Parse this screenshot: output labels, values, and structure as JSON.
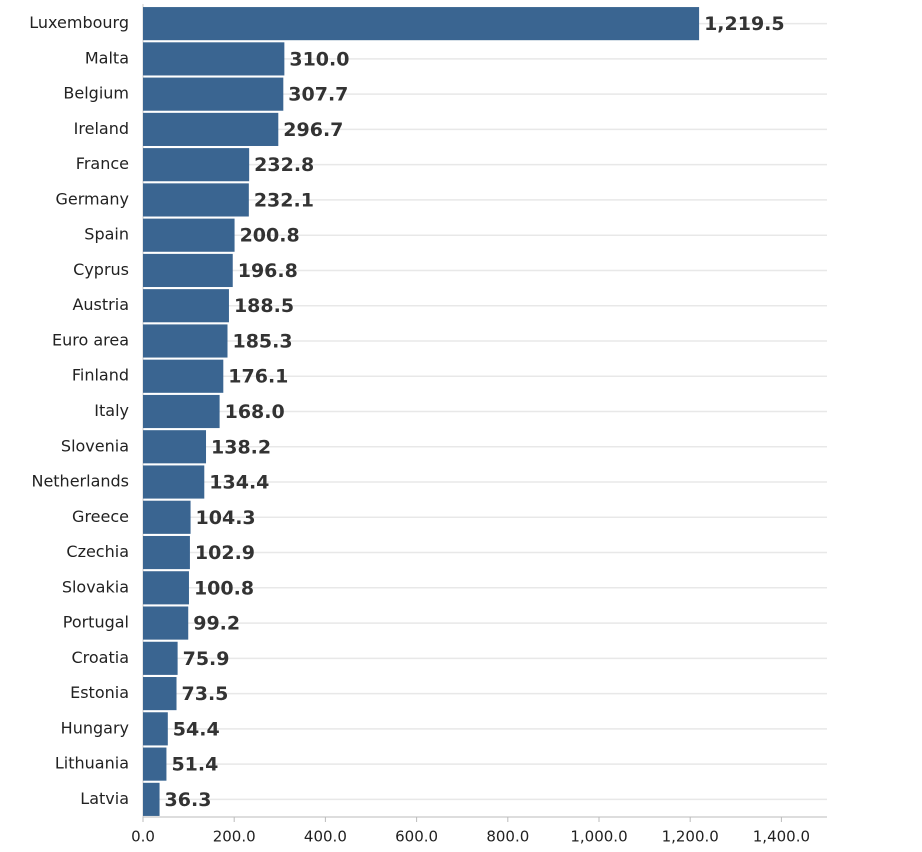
{
  "chart_data": {
    "type": "hbar",
    "categories": [
      "Luxembourg",
      "Malta",
      "Belgium",
      "Ireland",
      "France",
      "Germany",
      "Spain",
      "Cyprus",
      "Austria",
      "Euro area",
      "Finland",
      "Italy",
      "Slovenia",
      "Netherlands",
      "Greece",
      "Czechia",
      "Slovakia",
      "Portugal",
      "Croatia",
      "Estonia",
      "Hungary",
      "Lithuania",
      "Latvia"
    ],
    "values": [
      1219.5,
      310.0,
      307.7,
      296.7,
      232.8,
      232.1,
      200.8,
      196.8,
      188.5,
      185.3,
      176.1,
      168.0,
      138.2,
      134.4,
      104.3,
      102.9,
      100.8,
      99.2,
      75.9,
      73.5,
      54.4,
      51.4,
      36.3
    ],
    "value_labels": [
      "1,219.5",
      "310.0",
      "307.7",
      "296.7",
      "232.8",
      "232.1",
      "200.8",
      "196.8",
      "188.5",
      "185.3",
      "176.1",
      "168.0",
      "138.2",
      "134.4",
      "104.3",
      "102.9",
      "100.8",
      "99.2",
      "75.9",
      "73.5",
      "54.4",
      "51.4",
      "36.3"
    ],
    "color": "#3a6591",
    "xlim": [
      0,
      1500
    ],
    "xticks": [
      {
        "value": 0,
        "label": "0.0"
      },
      {
        "value": 200,
        "label": "200.0"
      },
      {
        "value": 400,
        "label": "400.0"
      },
      {
        "value": 600,
        "label": "600.0"
      },
      {
        "value": 800,
        "label": "800.0"
      },
      {
        "value": 1000,
        "label": "1,000.0"
      },
      {
        "value": 1200,
        "label": "1,200.0"
      },
      {
        "value": 1400,
        "label": "1,400.0"
      }
    ]
  }
}
